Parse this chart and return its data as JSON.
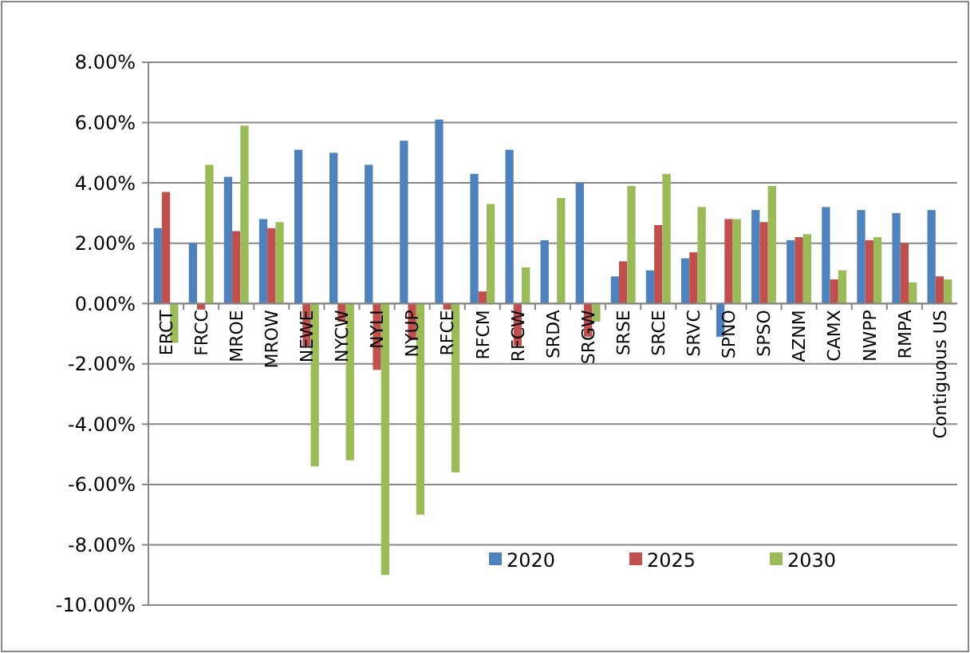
{
  "chart_data": {
    "type": "bar",
    "categories": [
      "ERCT",
      "FRCC",
      "MROE",
      "MROW",
      "NEWE",
      "NYCW",
      "NYLI",
      "NYUP",
      "RFCE",
      "RFCM",
      "RFCW",
      "SRDA",
      "SRGW",
      "SRSE",
      "SRCE",
      "SRVC",
      "SPNO",
      "SPSO",
      "AZNM",
      "CAMX",
      "NWPP",
      "RMPA",
      "Contiguous US"
    ],
    "series": [
      {
        "name": "2020",
        "color": "#4f81bd",
        "values": [
          2.5,
          2.0,
          4.2,
          2.8,
          5.1,
          5.0,
          4.6,
          5.4,
          6.1,
          4.3,
          5.1,
          2.1,
          4.0,
          0.9,
          1.1,
          1.5,
          -1.1,
          3.1,
          2.1,
          3.2,
          3.1,
          3.0,
          3.1
        ]
      },
      {
        "name": "2025",
        "color": "#c0504d",
        "values": [
          3.7,
          -0.2,
          2.4,
          2.5,
          -1.4,
          -0.6,
          -2.2,
          -1.2,
          -0.2,
          0.4,
          -1.4,
          null,
          -1.1,
          1.4,
          2.6,
          1.7,
          2.8,
          2.7,
          2.2,
          0.8,
          2.1,
          2.0,
          0.9
        ]
      },
      {
        "name": "2030",
        "color": "#9bbb59",
        "values": [
          -1.3,
          4.6,
          5.9,
          2.7,
          -5.4,
          -5.2,
          -9.0,
          -7.0,
          -5.6,
          3.3,
          1.2,
          3.5,
          -0.6,
          3.9,
          4.3,
          3.2,
          2.8,
          3.9,
          2.3,
          1.1,
          2.2,
          0.7,
          0.8
        ]
      }
    ],
    "ylim": [
      -10,
      8
    ],
    "yticks": [
      {
        "value": -10,
        "label": "-10.00%"
      },
      {
        "value": -8,
        "label": "-8.00%"
      },
      {
        "value": -6,
        "label": "-6.00%"
      },
      {
        "value": -4,
        "label": "-4.00%"
      },
      {
        "value": -2,
        "label": "-2.00%"
      },
      {
        "value": 0,
        "label": "0.00%"
      },
      {
        "value": 2,
        "label": "2.00%"
      },
      {
        "value": 4,
        "label": "4.00%"
      },
      {
        "value": 6,
        "label": "6.00%"
      },
      {
        "value": 8,
        "label": "8.00%"
      }
    ],
    "grid": "y",
    "legend": "bottom"
  }
}
